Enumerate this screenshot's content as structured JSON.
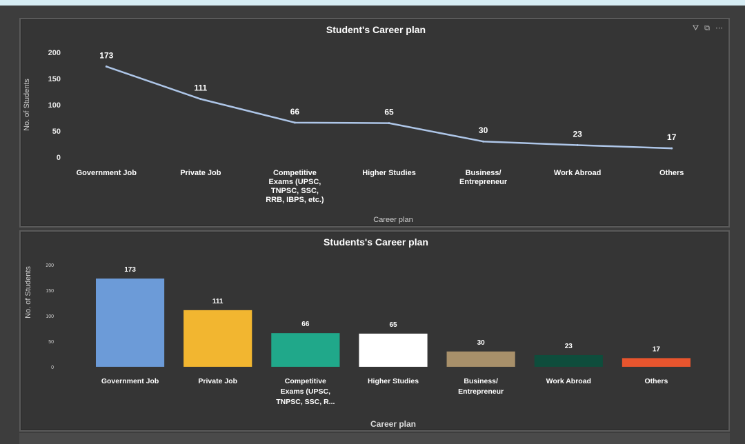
{
  "chart_data": [
    {
      "type": "line",
      "title": "Student's Career plan",
      "xlabel": "Career plan",
      "ylabel": "No. of Students",
      "categories": [
        [
          "Government Job"
        ],
        [
          "Private Job"
        ],
        [
          "Competitive",
          "Exams (UPSC,",
          "TNPSC, SSC,",
          "RRB, IBPS, etc.)"
        ],
        [
          "Higher Studies"
        ],
        [
          "Business/",
          "Entrepreneur"
        ],
        [
          "Work Abroad"
        ],
        [
          "Others"
        ]
      ],
      "values": [
        173,
        111,
        66,
        65,
        30,
        23,
        17
      ],
      "ylim": [
        0,
        200
      ],
      "yticks": [
        "0",
        "50",
        "100",
        "150",
        "200"
      ],
      "line_color": "#aec6e8"
    },
    {
      "type": "bar",
      "title": "Students's Career plan",
      "xlabel": "Career plan",
      "ylabel": "No. of Students",
      "categories": [
        [
          "Government Job"
        ],
        [
          "Private Job"
        ],
        [
          "Competitive",
          "Exams (UPSC,",
          "TNPSC, SSC, R..."
        ],
        [
          "Higher Studies"
        ],
        [
          "Business/",
          "Entrepreneur"
        ],
        [
          "Work Abroad"
        ],
        [
          "Others"
        ]
      ],
      "values": [
        173,
        111,
        66,
        65,
        30,
        23,
        17
      ],
      "ylim": [
        0,
        200
      ],
      "yticks": [
        "0",
        "50",
        "100",
        "150",
        "200"
      ],
      "colors": [
        "#6c9bd8",
        "#f2b630",
        "#20a88a",
        "#ffffff",
        "#a8906a",
        "#0e4d3c",
        "#e8552e"
      ]
    }
  ],
  "toolbar": {
    "filter_icon": "filter-icon",
    "focus_icon": "focus-mode-icon",
    "more_icon": "more-options-icon",
    "filter_glyph": "⛛",
    "focus_glyph": "⧉",
    "more_glyph": "⋯"
  }
}
